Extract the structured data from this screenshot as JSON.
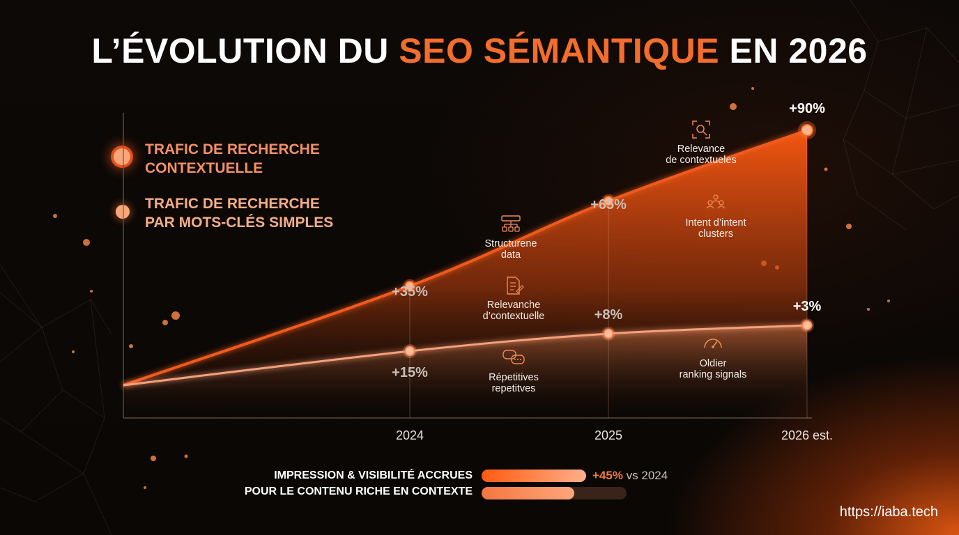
{
  "title": {
    "prefix": "L’ÉVOLUTION DU ",
    "highlight": "SEO SÉMANTIQUE",
    "suffix": " EN 2026"
  },
  "colors": {
    "accent": "#f36d2d",
    "series_contextual": "#f05a1e",
    "series_keywords": "#f6a07a",
    "background": "#0b0806"
  },
  "legend": [
    {
      "line1": "TRAFIC DE RECHERCHE",
      "line2": "CONTEXTUELLE"
    },
    {
      "line1": "TRAFIC DE RECHERCHE",
      "line2": "PAR MOTS-CLÉS SIMPLES"
    }
  ],
  "chart_data": {
    "type": "area",
    "x": [
      "",
      "2024",
      "2025",
      "2026 est."
    ],
    "categories": [
      "2024",
      "2025",
      "2026 est."
    ],
    "series": [
      {
        "name": "TRAFIC DE RECHERCHE CONTEXTUELLE",
        "values": [
          0,
          35,
          65,
          90
        ],
        "labels": [
          "",
          "+35%",
          "+65%",
          "+90%"
        ]
      },
      {
        "name": "TRAFIC DE RECHERCHE PAR MOTS-CLÉS SIMPLES",
        "values": [
          0,
          15,
          8,
          3
        ],
        "labels": [
          "",
          "+15%",
          "+8%",
          "+3%"
        ]
      }
    ],
    "annotations": [
      {
        "icon": "search-focus-icon",
        "lines": [
          "Relevance",
          "de contextueles"
        ]
      },
      {
        "icon": "people-cluster-icon",
        "lines": [
          "Intent d’intent",
          "clusters"
        ]
      },
      {
        "icon": "structured-data-icon",
        "lines": [
          "Structurene",
          "data"
        ]
      },
      {
        "icon": "document-edit-icon",
        "lines": [
          "Relevanche",
          "d’contextuelle"
        ]
      },
      {
        "icon": "chat-bubbles-icon",
        "lines": [
          "Répetitives",
          "repetitves"
        ]
      },
      {
        "icon": "gauge-icon",
        "lines": [
          "Oldier",
          "ranking signals"
        ]
      }
    ],
    "grid": false,
    "legend_position": "top-left"
  },
  "bottom": {
    "line1": "IMPRESSION & VISIBILITÉ ACCRUES",
    "line2": "POUR LE CONTENU RICHE EN CONTEXTE",
    "bar1_fraction": 1.0,
    "bar2_fraction": 0.64,
    "stat_value": "+45%",
    "stat_text": " vs 2024"
  },
  "url": "https://iaba.tech"
}
